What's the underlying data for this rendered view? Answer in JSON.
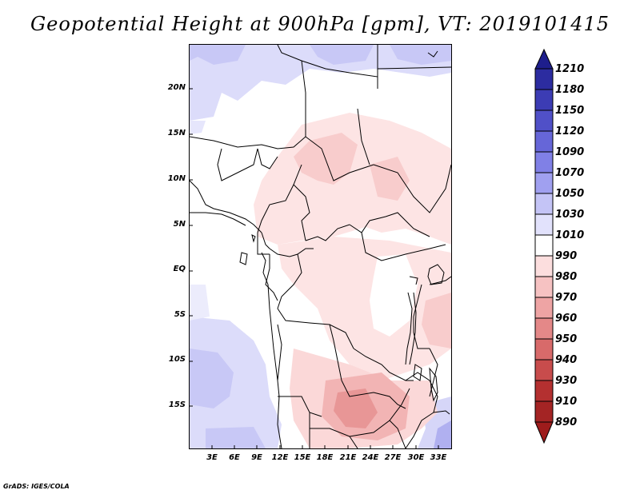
{
  "title": "Geopotential Height at 900hPa [gpm], VT: 2019101415",
  "footer": "GrADS: IGES/COLA",
  "axes": {
    "y_ticks": [
      "20N",
      "15N",
      "10N",
      "5N",
      "EQ",
      "5S",
      "10S",
      "15S"
    ],
    "x_ticks": [
      "3E",
      "6E",
      "9E",
      "12E",
      "15E",
      "18E",
      "21E",
      "24E",
      "27E",
      "30E",
      "33E"
    ]
  },
  "colorbar": {
    "levels": [
      "1210",
      "1180",
      "1150",
      "1120",
      "1090",
      "1070",
      "1050",
      "1030",
      "1010",
      "990",
      "980",
      "970",
      "960",
      "950",
      "940",
      "930",
      "910",
      "890"
    ],
    "colors": {
      "blue_darkest": "#1e1e8c",
      "blue_dark": "#2c2ca0",
      "blue_mid1": "#3c3cb4",
      "blue_mid2": "#5050c8",
      "blue_mid3": "#6666d8",
      "blue_mid4": "#8080e6",
      "blue_light1": "#a0a0f0",
      "blue_light2": "#c4c4f6",
      "blue_lightest": "#e2e2fc",
      "white": "#ffffff",
      "red_lightest": "#fcdede",
      "red_light1": "#f6c2c2",
      "red_light2": "#eea4a4",
      "red_mid1": "#e48888",
      "red_mid2": "#d86a6a",
      "red_dark1": "#c84c4c",
      "red_dark2": "#b43030",
      "red_darkest": "#9e1c1c"
    }
  }
}
